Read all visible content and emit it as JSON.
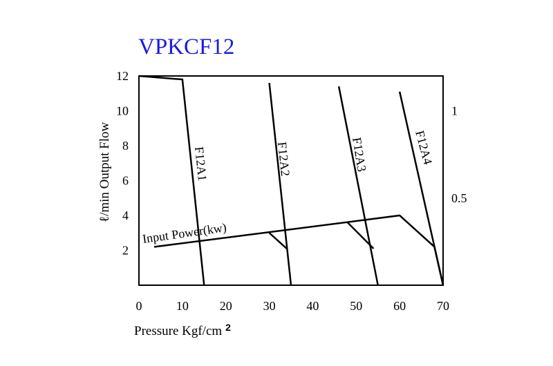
{
  "chart_data": {
    "type": "line",
    "title": "VPKCF12",
    "xlabel": "Pressure Kgf/cm",
    "xlabel_superscript": "2",
    "ylabel": "ℓ/min Output Flow",
    "y2label": "",
    "xlim": [
      0,
      70
    ],
    "ylim": [
      0,
      12
    ],
    "y2lim": [
      0,
      1.2
    ],
    "x_ticks": [
      0,
      10,
      20,
      30,
      40,
      50,
      60,
      70
    ],
    "x_tick_labels": [
      "0",
      "10",
      "20",
      "30",
      "40",
      "50",
      "60",
      "70"
    ],
    "y_ticks": [
      2,
      4,
      6,
      8,
      10,
      12
    ],
    "y_tick_labels": [
      "2",
      "4",
      "6",
      "8",
      "10",
      "12"
    ],
    "y2_ticks": [
      0.5,
      1
    ],
    "y2_tick_labels": [
      "0.5",
      "1"
    ],
    "grid": false,
    "flow_series": [
      {
        "name": "F12A1",
        "points": [
          [
            0,
            12
          ],
          [
            10,
            11.8
          ],
          [
            15,
            0
          ]
        ]
      },
      {
        "name": "F12A2",
        "points": [
          [
            30,
            11.6
          ],
          [
            35,
            0
          ]
        ]
      },
      {
        "name": "F12A3",
        "points": [
          [
            46,
            11.4
          ],
          [
            55,
            0
          ]
        ]
      },
      {
        "name": "F12A4",
        "points": [
          [
            60,
            11.1
          ],
          [
            70,
            0
          ]
        ]
      }
    ],
    "power_series": {
      "name": "Input Power(kw)",
      "unit": "kw",
      "main": [
        [
          3.5,
          0.22
        ],
        [
          60,
          0.4
        ],
        [
          68,
          0.22
        ],
        [
          70,
          0
        ]
      ],
      "branches": [
        [
          [
            30,
            0.3
          ],
          [
            34,
            0.21
          ]
        ],
        [
          [
            48,
            0.36
          ],
          [
            54,
            0.21
          ]
        ]
      ]
    }
  }
}
